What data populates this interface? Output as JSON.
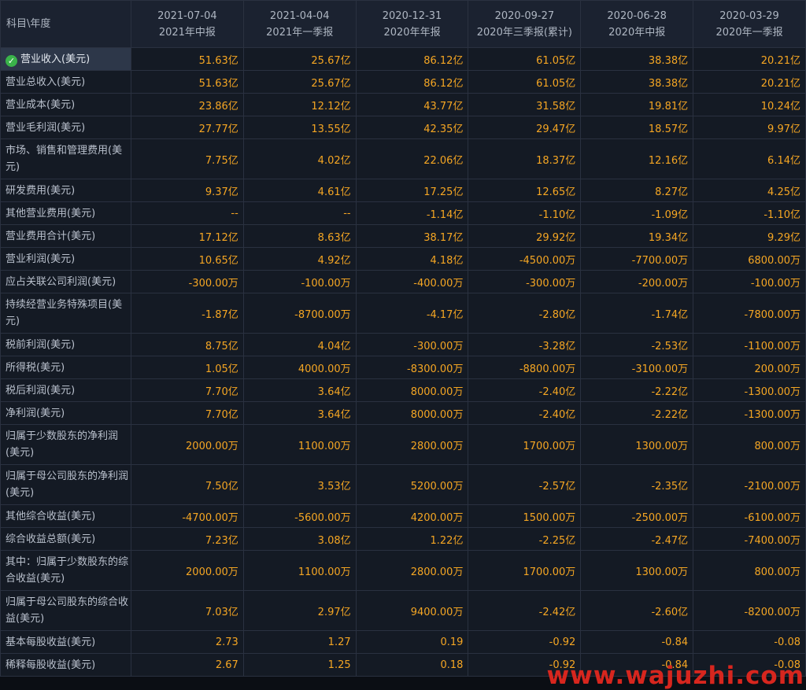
{
  "header": {
    "corner": "科目\\年度",
    "periods": [
      {
        "date": "2021-07-04",
        "label": "2021年中报"
      },
      {
        "date": "2021-04-04",
        "label": "2021年一季报"
      },
      {
        "date": "2020-12-31",
        "label": "2020年年报"
      },
      {
        "date": "2020-09-27",
        "label": "2020年三季报(累计)"
      },
      {
        "date": "2020-06-28",
        "label": "2020年中报"
      },
      {
        "date": "2020-03-29",
        "label": "2020年一季报"
      }
    ]
  },
  "rows": [
    {
      "label": "营业收入(美元)",
      "selected": true,
      "values": [
        "51.63亿",
        "25.67亿",
        "86.12亿",
        "61.05亿",
        "38.38亿",
        "20.21亿"
      ]
    },
    {
      "label": "营业总收入(美元)",
      "values": [
        "51.63亿",
        "25.67亿",
        "86.12亿",
        "61.05亿",
        "38.38亿",
        "20.21亿"
      ]
    },
    {
      "label": "营业成本(美元)",
      "values": [
        "23.86亿",
        "12.12亿",
        "43.77亿",
        "31.58亿",
        "19.81亿",
        "10.24亿"
      ]
    },
    {
      "label": "营业毛利润(美元)",
      "values": [
        "27.77亿",
        "13.55亿",
        "42.35亿",
        "29.47亿",
        "18.57亿",
        "9.97亿"
      ]
    },
    {
      "label": "市场、销售和管理费用(美元)",
      "tall": true,
      "values": [
        "7.75亿",
        "4.02亿",
        "22.06亿",
        "18.37亿",
        "12.16亿",
        "6.14亿"
      ]
    },
    {
      "label": "研发费用(美元)",
      "values": [
        "9.37亿",
        "4.61亿",
        "17.25亿",
        "12.65亿",
        "8.27亿",
        "4.25亿"
      ]
    },
    {
      "label": "其他营业费用(美元)",
      "values": [
        "--",
        "--",
        "-1.14亿",
        "-1.10亿",
        "-1.09亿",
        "-1.10亿"
      ]
    },
    {
      "label": "营业费用合计(美元)",
      "values": [
        "17.12亿",
        "8.63亿",
        "38.17亿",
        "29.92亿",
        "19.34亿",
        "9.29亿"
      ]
    },
    {
      "label": "营业利润(美元)",
      "values": [
        "10.65亿",
        "4.92亿",
        "4.18亿",
        "-4500.00万",
        "-7700.00万",
        "6800.00万"
      ]
    },
    {
      "label": "应占关联公司利润(美元)",
      "values": [
        "-300.00万",
        "-100.00万",
        "-400.00万",
        "-300.00万",
        "-200.00万",
        "-100.00万"
      ]
    },
    {
      "label": "持续经营业务特殊项目(美元)",
      "tall": true,
      "values": [
        "-1.87亿",
        "-8700.00万",
        "-4.17亿",
        "-2.80亿",
        "-1.74亿",
        "-7800.00万"
      ]
    },
    {
      "label": "税前利润(美元)",
      "values": [
        "8.75亿",
        "4.04亿",
        "-300.00万",
        "-3.28亿",
        "-2.53亿",
        "-1100.00万"
      ]
    },
    {
      "label": "所得税(美元)",
      "values": [
        "1.05亿",
        "4000.00万",
        "-8300.00万",
        "-8800.00万",
        "-3100.00万",
        "200.00万"
      ]
    },
    {
      "label": "税后利润(美元)",
      "values": [
        "7.70亿",
        "3.64亿",
        "8000.00万",
        "-2.40亿",
        "-2.22亿",
        "-1300.00万"
      ]
    },
    {
      "label": "净利润(美元)",
      "values": [
        "7.70亿",
        "3.64亿",
        "8000.00万",
        "-2.40亿",
        "-2.22亿",
        "-1300.00万"
      ]
    },
    {
      "label": "归属于少数股东的净利润(美元)",
      "tall": true,
      "values": [
        "2000.00万",
        "1100.00万",
        "2800.00万",
        "1700.00万",
        "1300.00万",
        "800.00万"
      ]
    },
    {
      "label": "归属于母公司股东的净利润(美元)",
      "tall": true,
      "values": [
        "7.50亿",
        "3.53亿",
        "5200.00万",
        "-2.57亿",
        "-2.35亿",
        "-2100.00万"
      ]
    },
    {
      "label": "其他综合收益(美元)",
      "values": [
        "-4700.00万",
        "-5600.00万",
        "4200.00万",
        "1500.00万",
        "-2500.00万",
        "-6100.00万"
      ]
    },
    {
      "label": "综合收益总额(美元)",
      "values": [
        "7.23亿",
        "3.08亿",
        "1.22亿",
        "-2.25亿",
        "-2.47亿",
        "-7400.00万"
      ]
    },
    {
      "label": "其中：归属于少数股东的综合收益(美元)",
      "tall": true,
      "values": [
        "2000.00万",
        "1100.00万",
        "2800.00万",
        "1700.00万",
        "1300.00万",
        "800.00万"
      ]
    },
    {
      "label": "归属于母公司股东的综合收益(美元)",
      "tall": true,
      "values": [
        "7.03亿",
        "2.97亿",
        "9400.00万",
        "-2.42亿",
        "-2.60亿",
        "-8200.00万"
      ]
    },
    {
      "label": "基本每股收益(美元)",
      "values": [
        "2.73",
        "1.27",
        "0.19",
        "-0.92",
        "-0.84",
        "-0.08"
      ]
    },
    {
      "label": "稀释每股收益(美元)",
      "values": [
        "2.67",
        "1.25",
        "0.18",
        "-0.92",
        "-0.84",
        "-0.08"
      ]
    }
  ],
  "watermark": "www.wajuzhi.com",
  "colors": {
    "value": "#f5a623",
    "label": "#b9c0cc",
    "header_bg": "#1b2230",
    "cell_bg": "#141a24",
    "border": "#2a3140",
    "watermark": "#d7261e",
    "check": "#3ab34a"
  }
}
